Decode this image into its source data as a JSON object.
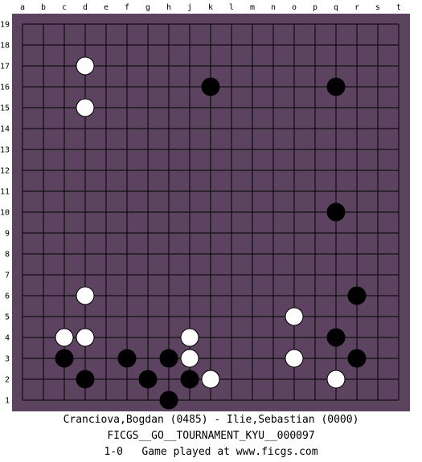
{
  "board": {
    "size": 19,
    "board_color": "#5c4360",
    "line_color": "#000000",
    "columns": [
      "a",
      "b",
      "c",
      "d",
      "e",
      "f",
      "g",
      "h",
      "j",
      "k",
      "l",
      "m",
      "n",
      "o",
      "p",
      "q",
      "r",
      "s",
      "t"
    ],
    "rows": [
      "19",
      "18",
      "17",
      "16",
      "15",
      "14",
      "13",
      "12",
      "11",
      "10",
      "9",
      "8",
      "7",
      "6",
      "5",
      "4",
      "3",
      "2",
      "1"
    ],
    "stones": [
      {
        "color": "white",
        "point": "d17"
      },
      {
        "color": "white",
        "point": "d15"
      },
      {
        "color": "black",
        "point": "k16"
      },
      {
        "color": "black",
        "point": "q16"
      },
      {
        "color": "black",
        "point": "q10"
      },
      {
        "color": "white",
        "point": "d6"
      },
      {
        "color": "black",
        "point": "r6"
      },
      {
        "color": "white",
        "point": "o5"
      },
      {
        "color": "white",
        "point": "c4"
      },
      {
        "color": "white",
        "point": "d4"
      },
      {
        "color": "white",
        "point": "j4"
      },
      {
        "color": "black",
        "point": "q4"
      },
      {
        "color": "black",
        "point": "c3"
      },
      {
        "color": "black",
        "point": "f3"
      },
      {
        "color": "black",
        "point": "h3"
      },
      {
        "color": "white",
        "point": "j3"
      },
      {
        "color": "white",
        "point": "o3"
      },
      {
        "color": "black",
        "point": "r3"
      },
      {
        "color": "black",
        "point": "d2"
      },
      {
        "color": "black",
        "point": "g2"
      },
      {
        "color": "black",
        "point": "j2"
      },
      {
        "color": "white",
        "point": "k2"
      },
      {
        "color": "white",
        "point": "q2"
      },
      {
        "color": "black",
        "point": "h1"
      }
    ]
  },
  "caption": {
    "players": "Cranciova,Bogdan (0485) - Ilie,Sebastian (0000)",
    "event": "FICGS__GO__TOURNAMENT_KYU__000097",
    "result": "1-0   Game played at www.ficgs.com"
  }
}
